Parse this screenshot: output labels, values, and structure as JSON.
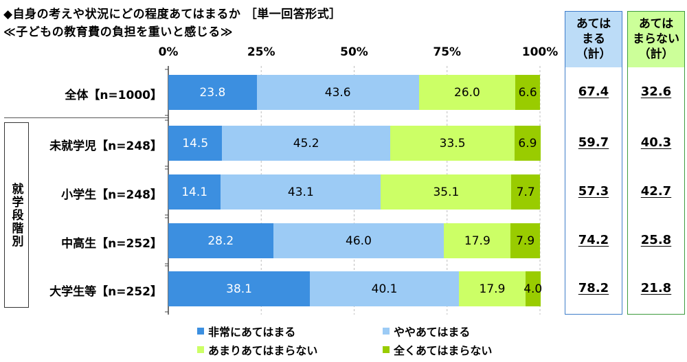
{
  "title": {
    "line1": "◆自身の考えや状況にどの程度あてはまるか ［単一回答形式］",
    "line2": "≪子どもの教育費の負担を重いと感じる≫"
  },
  "summary_headers": {
    "agree": [
      "あては",
      "まる",
      "（計）"
    ],
    "disagree": [
      "あては",
      "まらない",
      "（計）"
    ]
  },
  "group_label": "就学段階別",
  "colors": {
    "very": "#3c8fe0",
    "somewhat": "#9ccbf5",
    "not_much": "#ccff66",
    "not_at_all": "#99cc00",
    "agree_box": "#3d7cc9",
    "agree_head": "#bcdcf7",
    "disagree_box": "#3c9b3c",
    "disagree_head": "#ccff99"
  },
  "chart_data": {
    "type": "stacked-bar-horizontal",
    "title": "子どもの教育費の負担を重いと感じる",
    "x_ticks": [
      "0%",
      "25%",
      "50%",
      "75%",
      "100%"
    ],
    "xlim": [
      0,
      100
    ],
    "legend": [
      "非常にあてはまる",
      "ややあてはまる",
      "あまりあてはまらない",
      "全くあてはまらない"
    ],
    "rows": [
      {
        "label": "全体【n=1000】",
        "values": [
          23.8,
          43.6,
          26.0,
          6.6
        ],
        "labels": [
          "23.8",
          "43.6",
          "26.0",
          "6.6"
        ],
        "agree": "67.4",
        "disagree": "32.6"
      },
      {
        "label": "未就学児【n=248】",
        "values": [
          14.5,
          45.2,
          33.5,
          6.9
        ],
        "labels": [
          "14.5",
          "45.2",
          "33.5",
          "6.9"
        ],
        "agree": "59.7",
        "disagree": "40.3"
      },
      {
        "label": "小学生【n=248】",
        "values": [
          14.1,
          43.1,
          35.1,
          7.7
        ],
        "labels": [
          "14.1",
          "43.1",
          "35.1",
          "7.7"
        ],
        "agree": "57.3",
        "disagree": "42.7"
      },
      {
        "label": "中高生【n=252】",
        "values": [
          28.2,
          46.0,
          17.9,
          7.9
        ],
        "labels": [
          "28.2",
          "46.0",
          "17.9",
          "7.9"
        ],
        "agree": "74.2",
        "disagree": "25.8"
      },
      {
        "label": "大学生等【n=252】",
        "values": [
          38.1,
          40.1,
          17.9,
          4.0
        ],
        "labels": [
          "38.1",
          "40.1",
          "17.9",
          "4.0"
        ],
        "agree": "78.2",
        "disagree": "21.8"
      }
    ]
  }
}
